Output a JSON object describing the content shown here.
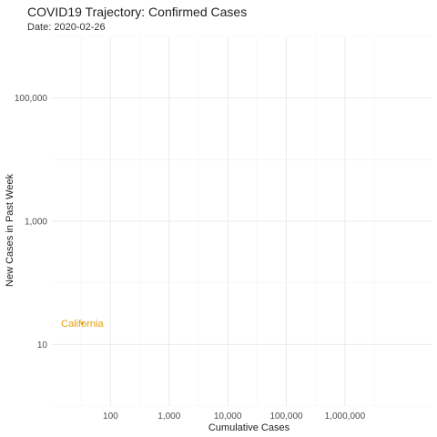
{
  "chart_data": {
    "type": "scatter",
    "title": "COVID19 Trajectory: Confirmed Cases",
    "subtitle": "Date: 2020-02-26",
    "xlabel": "Cumulative Cases",
    "ylabel": "New Cases in Past Week",
    "x_scale": "log",
    "y_scale": "log",
    "xlim": [
      10,
      30000000
    ],
    "ylim": [
      1,
      1000000
    ],
    "x_ticks": [
      {
        "value": 100,
        "label": "100"
      },
      {
        "value": 1000,
        "label": "1,000"
      },
      {
        "value": 10000,
        "label": "10,000"
      },
      {
        "value": 100000,
        "label": "100,000"
      },
      {
        "value": 1000000,
        "label": "1,000,000"
      }
    ],
    "y_ticks": [
      {
        "value": 10,
        "label": "10"
      },
      {
        "value": 1000,
        "label": "1,000"
      },
      {
        "value": 100000,
        "label": "100,000"
      }
    ],
    "grid": true,
    "legend": "none",
    "points": [
      {
        "label": "California",
        "x": 33,
        "y": 22,
        "color": "#e69f00"
      }
    ]
  }
}
